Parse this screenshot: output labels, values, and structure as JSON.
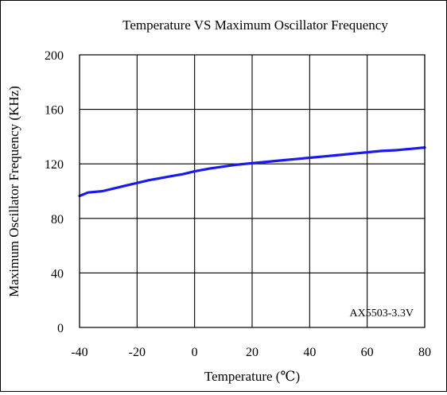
{
  "chart_data": {
    "type": "line",
    "title": "Temperature VS Maximum Oscillator Frequency",
    "xlabel": "Temperature (℃)",
    "ylabel": "Maximum Oscillator Frequency (KHz)",
    "xlim": [
      -40,
      80
    ],
    "ylim": [
      0,
      200
    ],
    "x_ticks": [
      -40,
      -20,
      0,
      20,
      40,
      60,
      80
    ],
    "y_ticks": [
      0,
      40,
      80,
      120,
      160,
      200
    ],
    "grid": true,
    "legend": "none",
    "annotation": "AX5503-3.3V",
    "colors": {
      "line": "#1a1aee",
      "grid": "#000000",
      "frame": "#000000"
    },
    "series": [
      {
        "x": [
          -40,
          -37,
          -32,
          -28,
          -24,
          -20,
          -16,
          -12,
          -8,
          -4,
          0,
          5,
          10,
          15,
          20,
          25,
          30,
          35,
          40,
          45,
          50,
          55,
          60,
          65,
          70,
          75,
          80
        ],
        "y": [
          96.5,
          99,
          100,
          102,
          104,
          106,
          108,
          109.5,
          111,
          112.5,
          114.5,
          116.5,
          118,
          119.5,
          120.5,
          121.5,
          122.5,
          123.5,
          124.5,
          125.5,
          126.5,
          127.5,
          128.5,
          129.5,
          130,
          131,
          132
        ]
      }
    ]
  }
}
